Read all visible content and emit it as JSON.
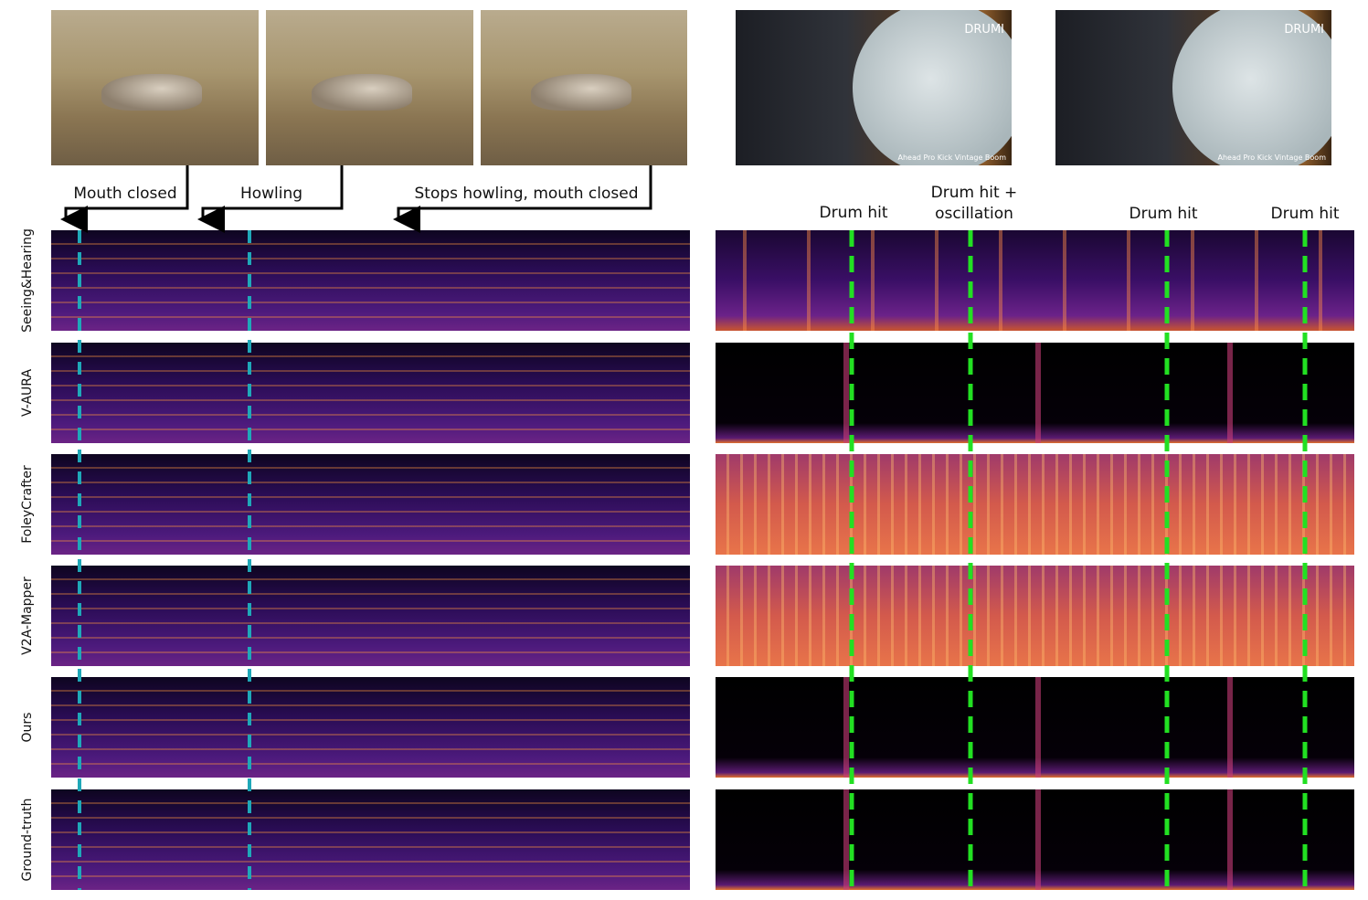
{
  "left_annotations": [
    "Mouth closed",
    "Howling",
    "Stops howling, mouth closed"
  ],
  "right_annotations": [
    "Drum hit",
    "Drum hit + oscillation",
    "Drum hit",
    "Drum hit"
  ],
  "row_labels": [
    "Seeing&Hearing",
    "V-AURA",
    "FoleyCrafter",
    "V2A-Mapper",
    "Ours",
    "Ground-truth"
  ],
  "drum_photo_texts": {
    "brand": "DRUMI",
    "caption": "Ahead Pro Kick Vintage Boom"
  }
}
